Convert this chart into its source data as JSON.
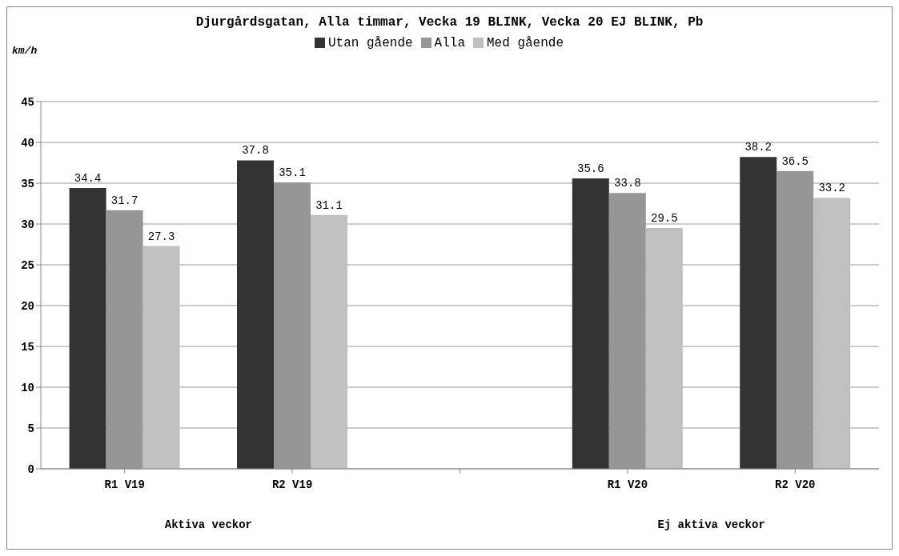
{
  "chart_data": {
    "type": "bar",
    "title": "Djurgårdsgatan, Alla timmar, Vecka 19 BLINK, Vecka 20 EJ BLINK, Pb",
    "ylabel": "km/h",
    "categories": [
      "R1 V19",
      "R2 V19",
      null,
      "R1 V20",
      "R2 V20"
    ],
    "series": [
      {
        "name": "Utan gående",
        "color": "#333333",
        "values": [
          34.4,
          37.8,
          null,
          35.6,
          38.2
        ]
      },
      {
        "name": "Alla",
        "color": "#969696",
        "values": [
          31.7,
          35.1,
          null,
          33.8,
          36.5
        ]
      },
      {
        "name": "Med gående",
        "color": "#c0c0c0",
        "values": [
          27.3,
          31.1,
          null,
          29.5,
          33.2
        ]
      }
    ],
    "ylim": [
      0,
      45
    ],
    "yticks": [
      0,
      5,
      10,
      15,
      20,
      25,
      30,
      35,
      40,
      45
    ],
    "grid": "y",
    "legend": "top",
    "data_labels": true,
    "annotations": [
      "Aktiva veckor",
      "Ej aktiva veckor"
    ]
  }
}
